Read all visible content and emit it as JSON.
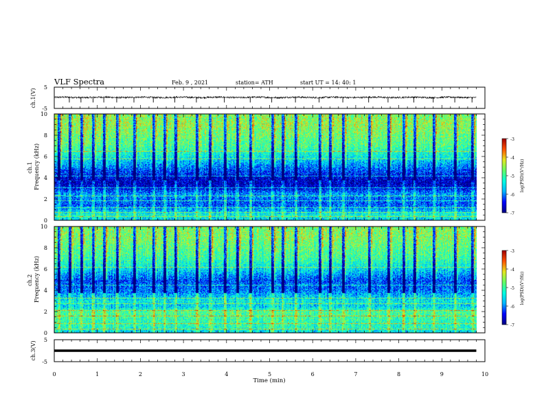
{
  "header": {
    "title": "VLF Spectra",
    "date": "Feb. 9 , 2021",
    "station": "station= ATH",
    "start": "start UT = 14: 40: 1"
  },
  "chart_data": [
    {
      "type": "line",
      "panel": "ch1-waveform",
      "ylabel": "ch.1(V)",
      "xlim": [
        0,
        10
      ],
      "ylim": [
        -5,
        5
      ],
      "yticks": [
        "5",
        "-5"
      ],
      "x_end_min": 9.8,
      "baseline_v": 0.2,
      "noise_v": 0.4,
      "spike_times_min": [
        0.35,
        0.62,
        0.9,
        1.15,
        1.45,
        1.85,
        2.3,
        2.8,
        3.3,
        3.95,
        4.55,
        5.05,
        5.6,
        6.15,
        6.7,
        7.3,
        7.75,
        8.35,
        8.8,
        9.3,
        9.7
      ],
      "spike_depth_v": -2.2
    },
    {
      "type": "heatmap",
      "panel": "ch1-spectrogram",
      "ylabel": "ch.1\nFrequency (kHz)",
      "xlim": [
        0,
        10
      ],
      "ylim": [
        0,
        10
      ],
      "yticks": [
        "0",
        "2",
        "4",
        "6",
        "8",
        "10"
      ],
      "colorbar_label": "log(PSD)(V²/Hz)",
      "colorbar_ticks": [
        "-3",
        "-4",
        "-5",
        "-6",
        "-7"
      ],
      "zlim": [
        -7,
        -3
      ],
      "freq_profile_khz": [
        0,
        0.5,
        1,
        1.5,
        2,
        2.5,
        3,
        3.5,
        4,
        5,
        6,
        7,
        8,
        9,
        10
      ],
      "log_psd_profile": [
        -5.7,
        -5.3,
        -5.8,
        -6.2,
        -6.1,
        -5.9,
        -6.5,
        -6.8,
        -6.6,
        -6.0,
        -5.4,
        -4.9,
        -4.7,
        -4.5,
        -4.6
      ],
      "tones_khz": [
        0.4,
        0.8,
        1.2,
        1.9,
        2.3,
        3.1,
        4.2,
        5.8,
        6.5
      ],
      "sferic_times_min": [
        0.1,
        0.35,
        0.62,
        0.9,
        1.15,
        1.45,
        1.85,
        2.3,
        2.55,
        2.8,
        3.3,
        3.6,
        3.95,
        4.25,
        4.55,
        5.05,
        5.3,
        5.6,
        6.15,
        6.4,
        6.7,
        7.3,
        7.75,
        8.1,
        8.35,
        8.8,
        9.3,
        9.7
      ],
      "x_end_min": 9.8
    },
    {
      "type": "heatmap",
      "panel": "ch2-spectrogram",
      "ylabel": "ch.2\nFrequency (kHz)",
      "xlim": [
        0,
        10
      ],
      "ylim": [
        0,
        10
      ],
      "yticks": [
        "0",
        "2",
        "4",
        "6",
        "8",
        "10"
      ],
      "colorbar_label": "log(PSD)(V²/Hz)",
      "colorbar_ticks": [
        "-3",
        "-4",
        "-5",
        "-6",
        "-7"
      ],
      "zlim": [
        -7,
        -3
      ],
      "freq_profile_khz": [
        0,
        0.5,
        1,
        1.5,
        2,
        2.5,
        3,
        3.5,
        4,
        5,
        6,
        7,
        8,
        9,
        10
      ],
      "log_psd_profile": [
        -5.6,
        -5.2,
        -5.1,
        -5.0,
        -4.9,
        -5.6,
        -5.4,
        -5.7,
        -6.0,
        -6.2,
        -5.5,
        -5.0,
        -4.8,
        -4.6,
        -4.6
      ],
      "tones_khz": [
        0.4,
        0.9,
        1.6,
        2.1,
        2.8,
        3.3,
        4.5,
        6.2
      ],
      "sferic_times_min": [
        0.1,
        0.35,
        0.62,
        0.9,
        1.15,
        1.45,
        1.85,
        2.3,
        2.55,
        2.8,
        3.3,
        3.6,
        3.95,
        4.25,
        4.55,
        5.05,
        5.3,
        5.6,
        6.15,
        6.4,
        6.7,
        7.3,
        7.75,
        8.1,
        8.35,
        8.8,
        9.3,
        9.7
      ],
      "x_end_min": 9.8
    },
    {
      "type": "line",
      "panel": "ch3-waveform",
      "ylabel": "ch.3(V)",
      "xlim": [
        0,
        10
      ],
      "ylim": [
        -5,
        5
      ],
      "yticks": [
        "5",
        "-5"
      ],
      "x_end_min": 9.8,
      "baseline_v": 0.0,
      "band_half_width_v": 0.55
    }
  ],
  "xaxis": {
    "label": "Time (min)",
    "ticks": [
      "0",
      "1",
      "2",
      "3",
      "4",
      "5",
      "6",
      "7",
      "8",
      "9",
      "10"
    ]
  },
  "colors": {
    "colormap": [
      "#000080",
      "#0000ff",
      "#00b4ff",
      "#00ffe0",
      "#64ff64",
      "#e6e61e",
      "#ff5000",
      "#a00000"
    ],
    "trace": "#000000"
  }
}
